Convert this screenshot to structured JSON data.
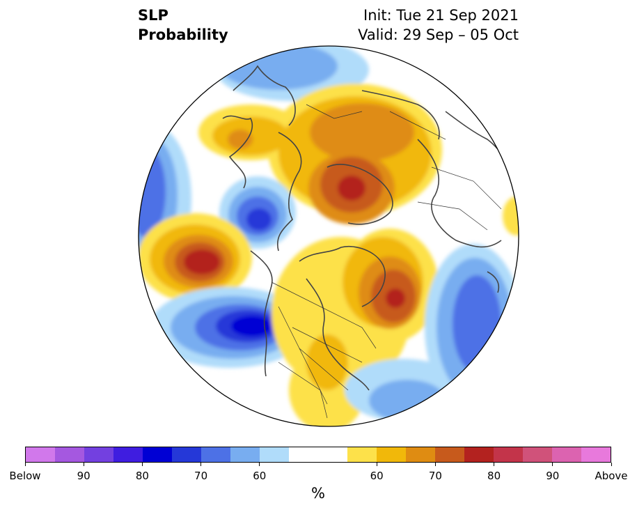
{
  "title": {
    "variable": "SLP",
    "product": "Probability",
    "init": "Init: Tue 21 Sep 2021",
    "valid": "Valid: 29 Sep – 05 Oct"
  },
  "colors": {
    "below": [
      "#d178eb",
      "#a558e0",
      "#7340e0",
      "#3f1de0",
      "#0000d4",
      "#2538d8",
      "#4d71e6",
      "#78adf0",
      "#b0dcfa"
    ],
    "neutral": "#ffffff",
    "above": [
      "#fde14a",
      "#f1b80a",
      "#df8c12",
      "#c75a1c",
      "#b3221f",
      "#c3344a",
      "#d0527a",
      "#dc63b0",
      "#e879dc"
    ],
    "coast": "#444444",
    "border": "#333333"
  },
  "colorbar": {
    "unit": "%",
    "tick_labels": [
      "Below",
      "90",
      "80",
      "70",
      "60",
      "60",
      "70",
      "80",
      "90",
      "Above"
    ]
  }
}
